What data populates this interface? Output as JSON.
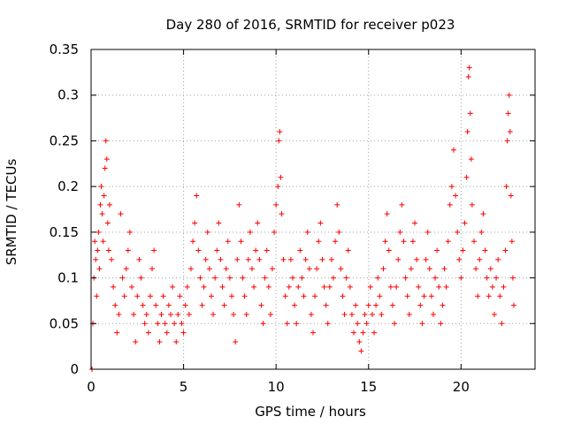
{
  "chart_data": {
    "type": "scatter",
    "title": "Day 280 of 2016, SRMTID for receiver p023",
    "xlabel": "GPS time / hours",
    "ylabel": "SRMTID / TECUs",
    "xlim": [
      0,
      24
    ],
    "ylim": [
      0,
      0.35
    ],
    "xticks": [
      0,
      5,
      10,
      15,
      20
    ],
    "xtick_labels": [
      "0",
      "5",
      "10",
      "15",
      "20"
    ],
    "yticks": [
      0,
      0.05,
      0.1,
      0.15,
      0.2,
      0.25,
      0.3,
      0.35
    ],
    "ytick_labels": [
      "0",
      "0.05",
      "0.1",
      "0.15",
      "0.2",
      "0.25",
      "0.3",
      "0.35"
    ],
    "grid": true,
    "marker": "+",
    "color": "#ff0000",
    "series": [
      {
        "name": "SRMTID",
        "points": [
          [
            0.05,
            0.0
          ],
          [
            0.1,
            0.05
          ],
          [
            0.15,
            0.1
          ],
          [
            0.2,
            0.14
          ],
          [
            0.25,
            0.12
          ],
          [
            0.3,
            0.08
          ],
          [
            0.35,
            0.13
          ],
          [
            0.4,
            0.15
          ],
          [
            0.45,
            0.11
          ],
          [
            0.5,
            0.18
          ],
          [
            0.55,
            0.2
          ],
          [
            0.6,
            0.17
          ],
          [
            0.65,
            0.14
          ],
          [
            0.7,
            0.19
          ],
          [
            0.75,
            0.22
          ],
          [
            0.8,
            0.25
          ],
          [
            0.85,
            0.23
          ],
          [
            0.9,
            0.16
          ],
          [
            0.95,
            0.13
          ],
          [
            1.0,
            0.18
          ],
          [
            1.1,
            0.12
          ],
          [
            1.2,
            0.09
          ],
          [
            1.3,
            0.07
          ],
          [
            1.4,
            0.04
          ],
          [
            1.5,
            0.06
          ],
          [
            1.6,
            0.17
          ],
          [
            1.7,
            0.1
          ],
          [
            1.8,
            0.08
          ],
          [
            1.9,
            0.11
          ],
          [
            2.0,
            0.13
          ],
          [
            2.1,
            0.15
          ],
          [
            2.2,
            0.09
          ],
          [
            2.3,
            0.06
          ],
          [
            2.4,
            0.03
          ],
          [
            2.5,
            0.08
          ],
          [
            2.6,
            0.12
          ],
          [
            2.7,
            0.1
          ],
          [
            2.8,
            0.07
          ],
          [
            2.9,
            0.05
          ],
          [
            3.0,
            0.06
          ],
          [
            3.1,
            0.04
          ],
          [
            3.2,
            0.08
          ],
          [
            3.3,
            0.11
          ],
          [
            3.4,
            0.13
          ],
          [
            3.5,
            0.07
          ],
          [
            3.6,
            0.05
          ],
          [
            3.7,
            0.03
          ],
          [
            3.8,
            0.06
          ],
          [
            3.9,
            0.08
          ],
          [
            4.0,
            0.05
          ],
          [
            4.1,
            0.04
          ],
          [
            4.2,
            0.07
          ],
          [
            4.3,
            0.06
          ],
          [
            4.4,
            0.09
          ],
          [
            4.5,
            0.05
          ],
          [
            4.6,
            0.03
          ],
          [
            4.7,
            0.06
          ],
          [
            4.8,
            0.08
          ],
          [
            4.9,
            0.05
          ],
          [
            5.0,
            0.04
          ],
          [
            5.1,
            0.07
          ],
          [
            5.2,
            0.09
          ],
          [
            5.3,
            0.06
          ],
          [
            5.4,
            0.11
          ],
          [
            5.5,
            0.14
          ],
          [
            5.6,
            0.16
          ],
          [
            5.7,
            0.19
          ],
          [
            5.8,
            0.13
          ],
          [
            5.9,
            0.1
          ],
          [
            6.0,
            0.07
          ],
          [
            6.1,
            0.09
          ],
          [
            6.2,
            0.12
          ],
          [
            6.3,
            0.15
          ],
          [
            6.4,
            0.11
          ],
          [
            6.5,
            0.08
          ],
          [
            6.6,
            0.06
          ],
          [
            6.7,
            0.1
          ],
          [
            6.8,
            0.13
          ],
          [
            6.9,
            0.16
          ],
          [
            7.0,
            0.12
          ],
          [
            7.1,
            0.09
          ],
          [
            7.2,
            0.07
          ],
          [
            7.3,
            0.11
          ],
          [
            7.4,
            0.14
          ],
          [
            7.5,
            0.1
          ],
          [
            7.6,
            0.08
          ],
          [
            7.7,
            0.06
          ],
          [
            7.8,
            0.03
          ],
          [
            7.9,
            0.12
          ],
          [
            8.0,
            0.18
          ],
          [
            8.1,
            0.14
          ],
          [
            8.2,
            0.1
          ],
          [
            8.3,
            0.08
          ],
          [
            8.4,
            0.06
          ],
          [
            8.5,
            0.12
          ],
          [
            8.6,
            0.15
          ],
          [
            8.7,
            0.11
          ],
          [
            8.8,
            0.09
          ],
          [
            8.9,
            0.13
          ],
          [
            9.0,
            0.16
          ],
          [
            9.1,
            0.12
          ],
          [
            9.2,
            0.07
          ],
          [
            9.3,
            0.05
          ],
          [
            9.4,
            0.1
          ],
          [
            9.5,
            0.13
          ],
          [
            9.6,
            0.09
          ],
          [
            9.7,
            0.06
          ],
          [
            9.8,
            0.11
          ],
          [
            9.9,
            0.15
          ],
          [
            10.0,
            0.18
          ],
          [
            10.1,
            0.2
          ],
          [
            10.15,
            0.25
          ],
          [
            10.2,
            0.26
          ],
          [
            10.25,
            0.21
          ],
          [
            10.3,
            0.17
          ],
          [
            10.4,
            0.12
          ],
          [
            10.5,
            0.08
          ],
          [
            10.6,
            0.05
          ],
          [
            10.7,
            0.09
          ],
          [
            10.8,
            0.12
          ],
          [
            10.9,
            0.1
          ],
          [
            11.0,
            0.07
          ],
          [
            11.1,
            0.05
          ],
          [
            11.2,
            0.09
          ],
          [
            11.3,
            0.13
          ],
          [
            11.4,
            0.1
          ],
          [
            11.5,
            0.08
          ],
          [
            11.6,
            0.12
          ],
          [
            11.7,
            0.15
          ],
          [
            11.8,
            0.11
          ],
          [
            11.9,
            0.06
          ],
          [
            12.0,
            0.04
          ],
          [
            12.1,
            0.08
          ],
          [
            12.2,
            0.11
          ],
          [
            12.3,
            0.14
          ],
          [
            12.4,
            0.16
          ],
          [
            12.5,
            0.12
          ],
          [
            12.6,
            0.09
          ],
          [
            12.7,
            0.07
          ],
          [
            12.8,
            0.05
          ],
          [
            12.9,
            0.09
          ],
          [
            13.0,
            0.12
          ],
          [
            13.1,
            0.1
          ],
          [
            13.2,
            0.14
          ],
          [
            13.3,
            0.18
          ],
          [
            13.4,
            0.15
          ],
          [
            13.5,
            0.11
          ],
          [
            13.6,
            0.08
          ],
          [
            13.7,
            0.06
          ],
          [
            13.8,
            0.1
          ],
          [
            13.9,
            0.13
          ],
          [
            14.0,
            0.09
          ],
          [
            14.1,
            0.06
          ],
          [
            14.2,
            0.04
          ],
          [
            14.3,
            0.07
          ],
          [
            14.4,
            0.05
          ],
          [
            14.5,
            0.03
          ],
          [
            14.6,
            0.02
          ],
          [
            14.7,
            0.04
          ],
          [
            14.8,
            0.06
          ],
          [
            14.9,
            0.05
          ],
          [
            15.0,
            0.07
          ],
          [
            15.1,
            0.09
          ],
          [
            15.2,
            0.06
          ],
          [
            15.3,
            0.04
          ],
          [
            15.4,
            0.07
          ],
          [
            15.5,
            0.1
          ],
          [
            15.6,
            0.08
          ],
          [
            15.7,
            0.06
          ],
          [
            15.8,
            0.11
          ],
          [
            15.9,
            0.14
          ],
          [
            16.0,
            0.17
          ],
          [
            16.1,
            0.13
          ],
          [
            16.2,
            0.09
          ],
          [
            16.3,
            0.07
          ],
          [
            16.4,
            0.05
          ],
          [
            16.5,
            0.09
          ],
          [
            16.6,
            0.12
          ],
          [
            16.7,
            0.15
          ],
          [
            16.8,
            0.18
          ],
          [
            16.9,
            0.14
          ],
          [
            17.0,
            0.1
          ],
          [
            17.1,
            0.08
          ],
          [
            17.2,
            0.06
          ],
          [
            17.3,
            0.11
          ],
          [
            17.4,
            0.14
          ],
          [
            17.5,
            0.16
          ],
          [
            17.6,
            0.12
          ],
          [
            17.7,
            0.09
          ],
          [
            17.8,
            0.07
          ],
          [
            17.9,
            0.05
          ],
          [
            18.0,
            0.08
          ],
          [
            18.1,
            0.12
          ],
          [
            18.2,
            0.15
          ],
          [
            18.3,
            0.11
          ],
          [
            18.4,
            0.08
          ],
          [
            18.5,
            0.06
          ],
          [
            18.6,
            0.1
          ],
          [
            18.7,
            0.13
          ],
          [
            18.8,
            0.09
          ],
          [
            18.9,
            0.05
          ],
          [
            19.0,
            0.07
          ],
          [
            19.1,
            0.11
          ],
          [
            19.2,
            0.09
          ],
          [
            19.3,
            0.14
          ],
          [
            19.4,
            0.18
          ],
          [
            19.5,
            0.2
          ],
          [
            19.6,
            0.24
          ],
          [
            19.7,
            0.19
          ],
          [
            19.8,
            0.15
          ],
          [
            19.9,
            0.12
          ],
          [
            20.0,
            0.1
          ],
          [
            20.1,
            0.13
          ],
          [
            20.2,
            0.16
          ],
          [
            20.3,
            0.21
          ],
          [
            20.35,
            0.26
          ],
          [
            20.4,
            0.32
          ],
          [
            20.45,
            0.33
          ],
          [
            20.5,
            0.28
          ],
          [
            20.55,
            0.23
          ],
          [
            20.6,
            0.18
          ],
          [
            20.7,
            0.14
          ],
          [
            20.8,
            0.11
          ],
          [
            20.9,
            0.08
          ],
          [
            21.0,
            0.12
          ],
          [
            21.1,
            0.15
          ],
          [
            21.2,
            0.17
          ],
          [
            21.3,
            0.13
          ],
          [
            21.4,
            0.1
          ],
          [
            21.5,
            0.08
          ],
          [
            21.6,
            0.11
          ],
          [
            21.7,
            0.09
          ],
          [
            21.8,
            0.06
          ],
          [
            21.9,
            0.1
          ],
          [
            22.0,
            0.12
          ],
          [
            22.1,
            0.08
          ],
          [
            22.2,
            0.05
          ],
          [
            22.3,
            0.09
          ],
          [
            22.4,
            0.13
          ],
          [
            22.45,
            0.2
          ],
          [
            22.5,
            0.25
          ],
          [
            22.55,
            0.28
          ],
          [
            22.6,
            0.3
          ],
          [
            22.65,
            0.26
          ],
          [
            22.7,
            0.19
          ],
          [
            22.75,
            0.14
          ],
          [
            22.8,
            0.1
          ],
          [
            22.85,
            0.07
          ]
        ]
      }
    ]
  }
}
